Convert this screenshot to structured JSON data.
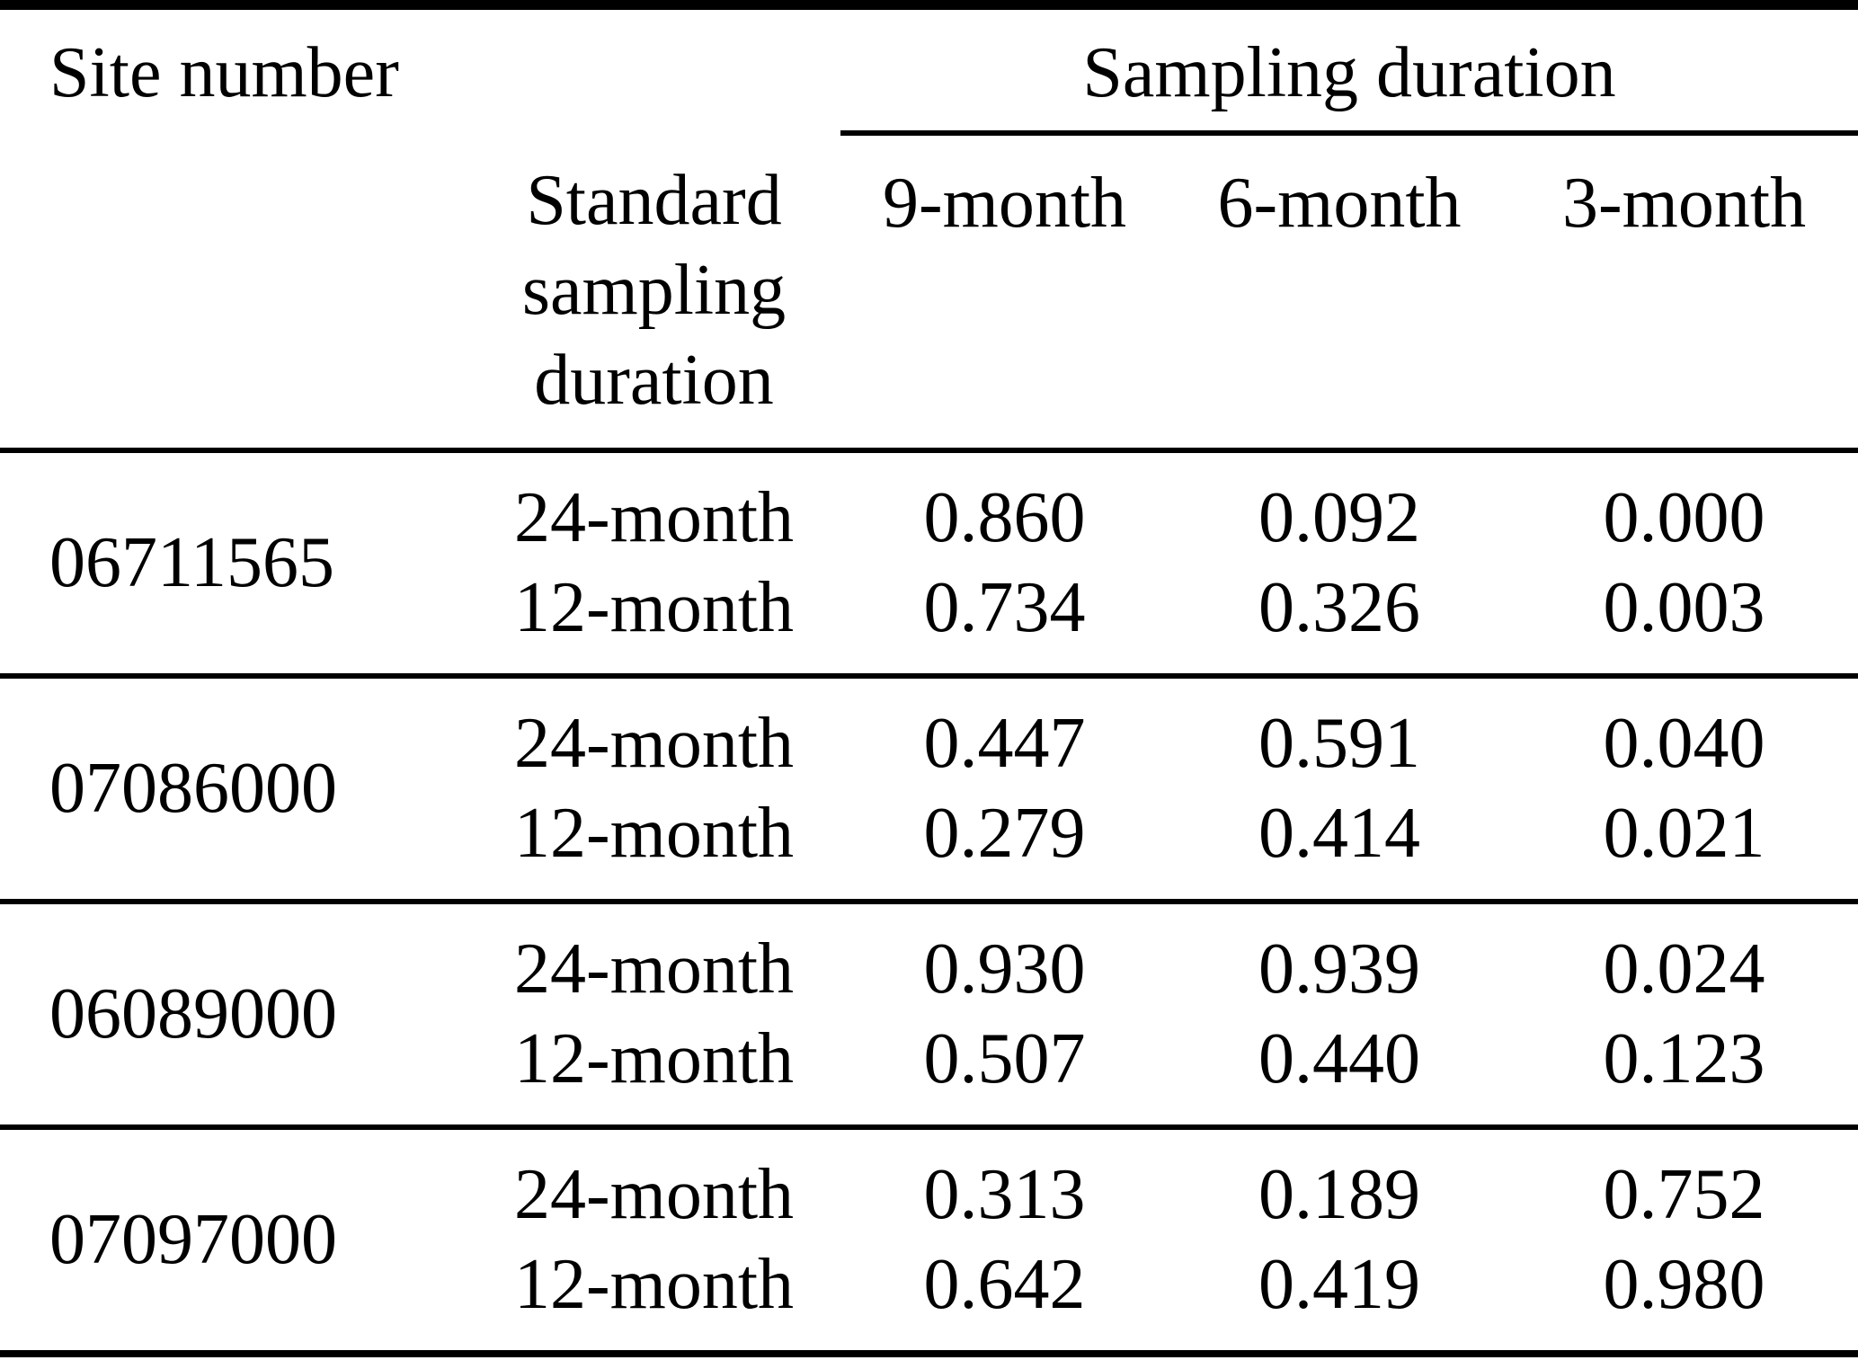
{
  "colors": {
    "background": "#ffffff",
    "text": "#000000",
    "rule": "#000000"
  },
  "table": {
    "header": {
      "site_number_label": "Site number",
      "sampling_duration_label": "Sampling duration",
      "standard_sampling_duration_label": "Standard\nsampling\nduration",
      "sub_columns": [
        "9-month",
        "6-month",
        "3-month"
      ]
    },
    "sites": [
      {
        "site": "06711565",
        "rows": [
          {
            "duration": "24-month",
            "values": [
              "0.860",
              "0.092",
              "0.000"
            ]
          },
          {
            "duration": "12-month",
            "values": [
              "0.734",
              "0.326",
              "0.003"
            ]
          }
        ]
      },
      {
        "site": "07086000",
        "rows": [
          {
            "duration": "24-month",
            "values": [
              "0.447",
              "0.591",
              "0.040"
            ]
          },
          {
            "duration": "12-month",
            "values": [
              "0.279",
              "0.414",
              "0.021"
            ]
          }
        ]
      },
      {
        "site": "06089000",
        "rows": [
          {
            "duration": "24-month",
            "values": [
              "0.930",
              "0.939",
              "0.024"
            ]
          },
          {
            "duration": "12-month",
            "values": [
              "0.507",
              "0.440",
              "0.123"
            ]
          }
        ]
      },
      {
        "site": "07097000",
        "rows": [
          {
            "duration": "24-month",
            "values": [
              "0.313",
              "0.189",
              "0.752"
            ]
          },
          {
            "duration": "12-month",
            "values": [
              "0.642",
              "0.419",
              "0.980"
            ]
          }
        ]
      }
    ]
  },
  "chart_data": {
    "type": "table",
    "title": "",
    "columns": [
      "Site number",
      "Standard sampling duration",
      "9-month",
      "6-month",
      "3-month"
    ],
    "rows": [
      [
        "06711565",
        "24-month",
        0.86,
        0.092,
        0.0
      ],
      [
        "06711565",
        "12-month",
        0.734,
        0.326,
        0.003
      ],
      [
        "07086000",
        "24-month",
        0.447,
        0.591,
        0.04
      ],
      [
        "07086000",
        "12-month",
        0.279,
        0.414,
        0.021
      ],
      [
        "06089000",
        "24-month",
        0.93,
        0.939,
        0.024
      ],
      [
        "06089000",
        "12-month",
        0.507,
        0.44,
        0.123
      ],
      [
        "07097000",
        "24-month",
        0.313,
        0.189,
        0.752
      ],
      [
        "07097000",
        "12-month",
        0.642,
        0.419,
        0.98
      ]
    ]
  }
}
